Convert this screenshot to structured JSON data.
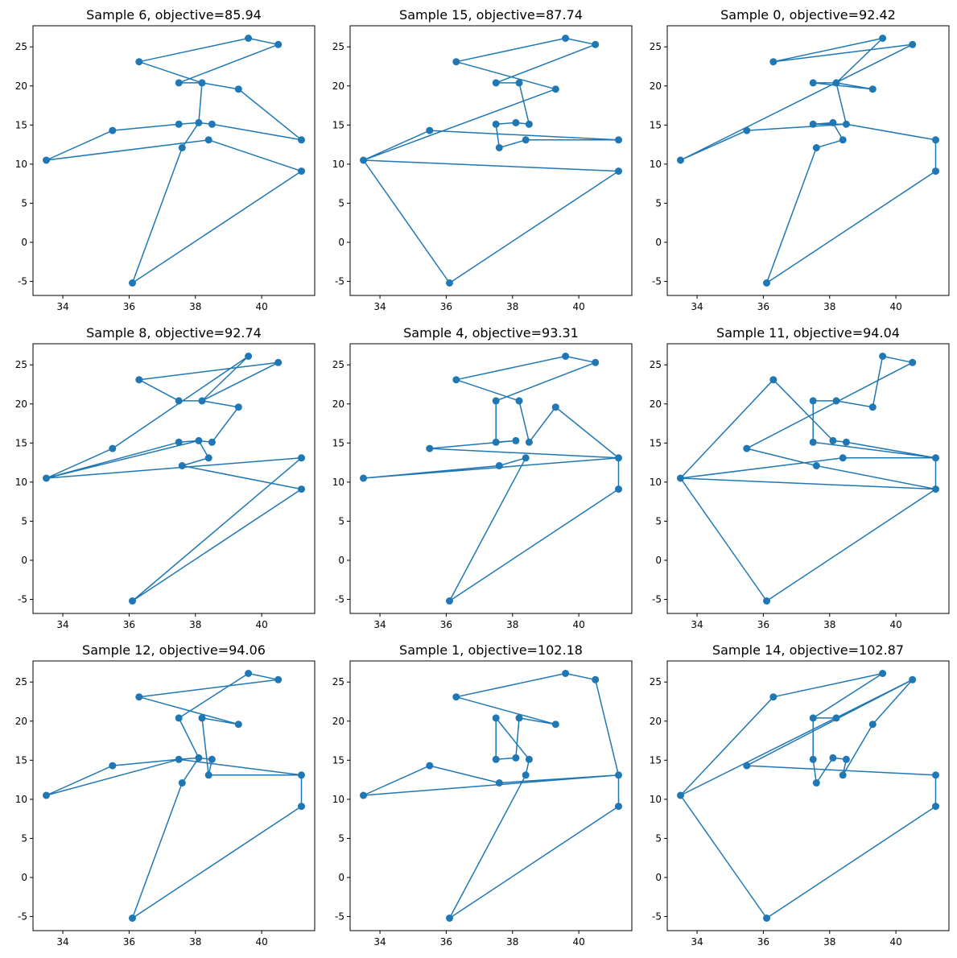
{
  "chart_data": {
    "type": "line",
    "title": "",
    "layout": "3x3 grid of tour plots",
    "series_color": "#1f77b4",
    "nodes": [
      {
        "id": 0,
        "x": 33.5,
        "y": 10.5
      },
      {
        "id": 1,
        "x": 35.5,
        "y": 14.3
      },
      {
        "id": 2,
        "x": 36.1,
        "y": -5.2
      },
      {
        "id": 3,
        "x": 36.3,
        "y": 23.1
      },
      {
        "id": 4,
        "x": 37.5,
        "y": 20.4
      },
      {
        "id": 5,
        "x": 37.5,
        "y": 15.1
      },
      {
        "id": 6,
        "x": 37.6,
        "y": 12.1
      },
      {
        "id": 7,
        "x": 38.1,
        "y": 15.3
      },
      {
        "id": 8,
        "x": 38.2,
        "y": 20.4
      },
      {
        "id": 9,
        "x": 38.4,
        "y": 13.1
      },
      {
        "id": 10,
        "x": 38.5,
        "y": 15.1
      },
      {
        "id": 11,
        "x": 39.3,
        "y": 19.6
      },
      {
        "id": 12,
        "x": 39.6,
        "y": 26.1
      },
      {
        "id": 13,
        "x": 40.5,
        "y": 25.3
      },
      {
        "id": 14,
        "x": 41.2,
        "y": 13.1
      },
      {
        "id": 15,
        "x": 41.2,
        "y": 9.1
      }
    ],
    "xlim": [
      33.1,
      41.6
    ],
    "ylim": [
      -6.8,
      27.7
    ],
    "xticks": [
      34,
      36,
      38,
      40
    ],
    "yticks": [
      -5,
      0,
      5,
      10,
      15,
      20,
      25
    ],
    "panels": [
      {
        "title": "Sample 6, objective=85.94",
        "tour": [
          0,
          1,
          5,
          7,
          10,
          14,
          11,
          8,
          4,
          13,
          12,
          3,
          8,
          7,
          6,
          2,
          15,
          9,
          0
        ]
      },
      {
        "title": "Sample 15, objective=87.74",
        "tour": [
          0,
          11,
          3,
          12,
          13,
          4,
          8,
          10,
          7,
          5,
          6,
          9,
          14,
          1,
          0,
          2,
          15,
          0
        ]
      },
      {
        "title": "Sample 0, objective=92.42",
        "tour": [
          0,
          13,
          3,
          12,
          8,
          4,
          11,
          8,
          10,
          14,
          15,
          2,
          6,
          9,
          7,
          5,
          10,
          1,
          0
        ]
      },
      {
        "title": "Sample 8, objective=92.74",
        "tour": [
          0,
          1,
          12,
          8,
          4,
          3,
          13,
          8,
          11,
          10,
          7,
          5,
          0,
          14,
          2,
          15,
          6,
          9,
          7,
          0
        ]
      },
      {
        "title": "Sample 4, objective=93.31",
        "tour": [
          0,
          6,
          9,
          2,
          15,
          14,
          11,
          10,
          8,
          3,
          12,
          13,
          4,
          5,
          7,
          1,
          14,
          0
        ]
      },
      {
        "title": "Sample 11, objective=94.04",
        "tour": [
          0,
          9,
          14,
          15,
          6,
          1,
          13,
          12,
          11,
          8,
          4,
          5,
          14,
          10,
          7,
          3,
          0,
          2,
          15,
          0
        ]
      },
      {
        "title": "Sample 12, objective=94.06",
        "tour": [
          0,
          1,
          5,
          14,
          9,
          10,
          7,
          4,
          12,
          13,
          3,
          11,
          8,
          9,
          14,
          15,
          2,
          6,
          7,
          5,
          0
        ]
      },
      {
        "title": "Sample 1, objective=102.18",
        "tour": [
          0,
          1,
          6,
          14,
          15,
          2,
          9,
          10,
          4,
          5,
          7,
          8,
          11,
          3,
          12,
          13,
          14,
          0
        ]
      },
      {
        "title": "Sample 14, objective=102.87",
        "tour": [
          0,
          3,
          12,
          4,
          5,
          6,
          7,
          10,
          9,
          11,
          13,
          1,
          14,
          15,
          2,
          0,
          13,
          8,
          4
        ]
      }
    ]
  }
}
